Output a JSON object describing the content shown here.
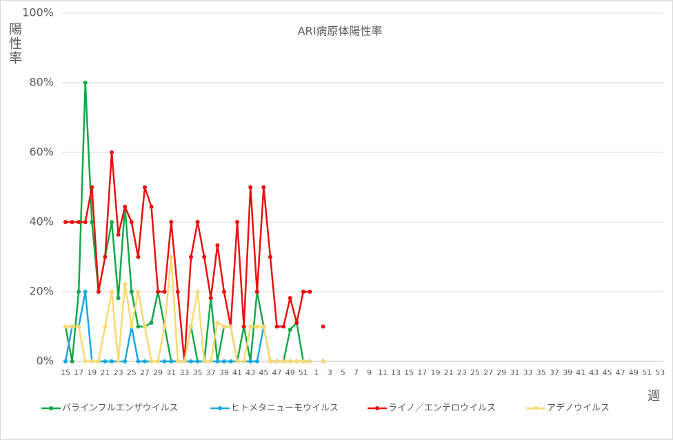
{
  "chart_data": {
    "type": "line",
    "title": "ARI病原体陽性率",
    "y_label": "陽性率",
    "x_label": "週",
    "categories": [
      15,
      null,
      17,
      null,
      19,
      null,
      21,
      null,
      23,
      null,
      25,
      null,
      27,
      null,
      29,
      null,
      31,
      null,
      33,
      null,
      35,
      null,
      37,
      null,
      39,
      null,
      41,
      null,
      43,
      null,
      45,
      null,
      47,
      null,
      49,
      null,
      51,
      null,
      1,
      null,
      3,
      null,
      5,
      null,
      7,
      null,
      9,
      null,
      11,
      null,
      13,
      null,
      15,
      null,
      17,
      null,
      19,
      null,
      21,
      null,
      23,
      null,
      25,
      null,
      27,
      null,
      29,
      null,
      31,
      null,
      33,
      null,
      35,
      null,
      37,
      null,
      39,
      null,
      41,
      null,
      43,
      null,
      45,
      null,
      47,
      null,
      49,
      null,
      51,
      null,
      53
    ],
    "ylim": [
      0,
      100
    ],
    "yticks": [
      {
        "value": 0,
        "label": "0%"
      },
      {
        "value": 20,
        "label": "20%"
      },
      {
        "value": 40,
        "label": "40%"
      },
      {
        "value": 60,
        "label": "60%"
      },
      {
        "value": 80,
        "label": "80%"
      },
      {
        "value": 100,
        "label": "100%"
      }
    ],
    "grid": true,
    "legend": "bottom",
    "series": [
      {
        "name": "パラインフルエンザウイルス",
        "color": "#13a84a",
        "values": [
          10,
          0,
          20,
          80,
          40,
          20,
          30,
          40,
          18.2,
          44.4,
          20,
          10,
          10,
          11.1,
          20,
          10,
          0,
          0,
          0,
          10,
          0,
          0,
          18.2,
          0,
          10,
          10,
          0,
          10,
          0,
          20,
          10,
          0,
          0,
          0,
          9.1,
          11.1,
          0,
          0,
          null,
          0,
          null,
          null,
          null,
          null,
          null,
          null,
          null,
          null,
          null,
          null,
          null,
          null,
          null,
          null,
          null,
          null,
          null,
          null,
          null,
          null,
          null,
          null,
          null,
          null,
          null,
          null,
          null,
          null,
          null,
          null,
          null,
          null,
          null,
          null,
          null,
          null,
          null,
          null,
          null,
          null,
          null,
          null,
          null,
          null,
          null,
          null,
          null,
          null,
          null,
          null,
          null
        ]
      },
      {
        "name": "ヒトメタニューモウイルス",
        "color": "#1aa7e0",
        "values": [
          0,
          10,
          10,
          20,
          0,
          0,
          0,
          0,
          0,
          0,
          10,
          0,
          0,
          0,
          0,
          0,
          0,
          0,
          0,
          0,
          0,
          0,
          0,
          0,
          0,
          0,
          0,
          0,
          0,
          0,
          10,
          0,
          0,
          0,
          0,
          0,
          0,
          0,
          null,
          0,
          null,
          null,
          null,
          null,
          null,
          null,
          null,
          null,
          null,
          null,
          null,
          null,
          null,
          null,
          null,
          null,
          null,
          null,
          null,
          null,
          null,
          null,
          null,
          null,
          null,
          null,
          null,
          null,
          null,
          null,
          null,
          null,
          null,
          null,
          null,
          null,
          null,
          null,
          null,
          null,
          null,
          null,
          null,
          null,
          null,
          null,
          null,
          null,
          null,
          null,
          null
        ]
      },
      {
        "name": "ライノ／エンテロウイルス",
        "color": "#e8100f",
        "values": [
          40,
          40,
          40,
          40,
          50,
          20,
          30,
          60,
          36.4,
          44.4,
          40,
          30,
          50,
          44.4,
          20,
          20,
          40,
          20,
          0,
          30,
          40,
          30,
          18.2,
          33.3,
          20,
          10,
          40,
          10,
          50,
          20,
          50,
          30,
          10,
          10,
          18.2,
          11.1,
          20,
          20,
          null,
          10,
          null,
          null,
          null,
          null,
          null,
          null,
          null,
          null,
          null,
          null,
          null,
          null,
          null,
          null,
          null,
          null,
          null,
          null,
          null,
          null,
          null,
          null,
          null,
          null,
          null,
          null,
          null,
          null,
          null,
          null,
          null,
          null,
          null,
          null,
          null,
          null,
          null,
          null,
          null,
          null,
          null,
          null,
          null,
          null,
          null,
          null,
          null,
          null,
          null,
          null,
          null
        ]
      },
      {
        "name": "アデノウイルス",
        "color": "#fbd971",
        "values": [
          10,
          10,
          10,
          0,
          0,
          0,
          10,
          20,
          0,
          22.2,
          10,
          20,
          10,
          0,
          0,
          10,
          30,
          0,
          0,
          10,
          20,
          0,
          0,
          11.1,
          10,
          10,
          0,
          0,
          10,
          10,
          10,
          0,
          0,
          0,
          0,
          0,
          0,
          0,
          null,
          0,
          null,
          null,
          null,
          null,
          null,
          null,
          null,
          null,
          null,
          null,
          null,
          null,
          null,
          null,
          null,
          null,
          null,
          null,
          null,
          null,
          null,
          null,
          null,
          null,
          null,
          null,
          null,
          null,
          null,
          null,
          null,
          null,
          null,
          null,
          null,
          null,
          null,
          null,
          null,
          null,
          null,
          null,
          null,
          null,
          null,
          null,
          null,
          null,
          null,
          null,
          null
        ]
      }
    ]
  }
}
